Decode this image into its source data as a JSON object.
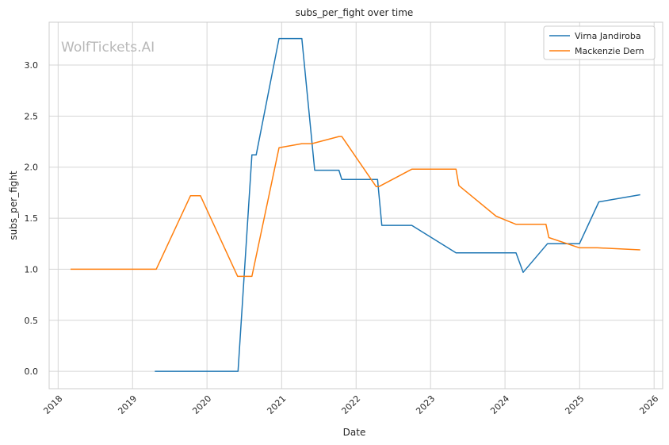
{
  "chart_data": {
    "type": "line",
    "title": "subs_per_fight over time",
    "xlabel": "Date",
    "ylabel": "subs_per_fight",
    "watermark": "WolfTickets.AI",
    "xlim": [
      "2017-11-18",
      "2026-02-12"
    ],
    "ylim": [
      -0.17,
      3.42
    ],
    "x_ticks": [
      "2018-01-01",
      "2019-01-01",
      "2020-01-01",
      "2021-01-01",
      "2022-01-01",
      "2023-01-01",
      "2024-01-01",
      "2025-01-01",
      "2026-01-01"
    ],
    "x_tick_labels": [
      "2018",
      "2019",
      "2020",
      "2021",
      "2022",
      "2023",
      "2024",
      "2025",
      "2026"
    ],
    "y_ticks": [
      0.0,
      0.5,
      1.0,
      1.5,
      2.0,
      2.5,
      3.0
    ],
    "y_tick_labels": [
      "0.0",
      "0.5",
      "1.0",
      "1.5",
      "2.0",
      "2.5",
      "3.0"
    ],
    "grid": true,
    "legend_position": "top-right",
    "series": [
      {
        "name": "Virna Jandiroba",
        "color": "#1f77b4",
        "x": [
          "2019-04-20",
          "2020-06-01",
          "2020-08-08",
          "2020-08-29",
          "2020-12-19",
          "2021-04-10",
          "2021-06-12",
          "2021-10-09",
          "2021-10-23",
          "2022-04-16",
          "2022-05-07",
          "2022-10-01",
          "2023-05-06",
          "2024-02-24",
          "2024-03-30",
          "2024-07-27",
          "2024-12-31",
          "2025-04-05",
          "2025-10-25"
        ],
        "y": [
          0.0,
          0.0,
          2.12,
          2.12,
          3.26,
          3.26,
          1.97,
          1.97,
          1.88,
          1.88,
          1.43,
          1.43,
          1.16,
          1.16,
          0.97,
          1.25,
          1.25,
          1.66,
          1.73
        ]
      },
      {
        "name": "Mackenzie Dern",
        "color": "#ff7f0e",
        "x": [
          "2018-03-03",
          "2019-04-27",
          "2019-10-12",
          "2019-11-30",
          "2020-05-30",
          "2020-08-08",
          "2020-12-19",
          "2021-04-10",
          "2021-05-29",
          "2021-10-09",
          "2021-10-23",
          "2022-04-09",
          "2022-04-23",
          "2022-10-01",
          "2023-05-06",
          "2023-05-20",
          "2023-11-18",
          "2024-02-24",
          "2024-07-20",
          "2024-08-03",
          "2024-12-31",
          "2025-03-29",
          "2025-10-25"
        ],
        "y": [
          1.0,
          1.0,
          1.72,
          1.72,
          0.93,
          0.93,
          2.19,
          2.23,
          2.23,
          2.3,
          2.3,
          1.81,
          1.81,
          1.98,
          1.98,
          1.82,
          1.52,
          1.44,
          1.44,
          1.31,
          1.21,
          1.21,
          1.19
        ]
      }
    ]
  }
}
